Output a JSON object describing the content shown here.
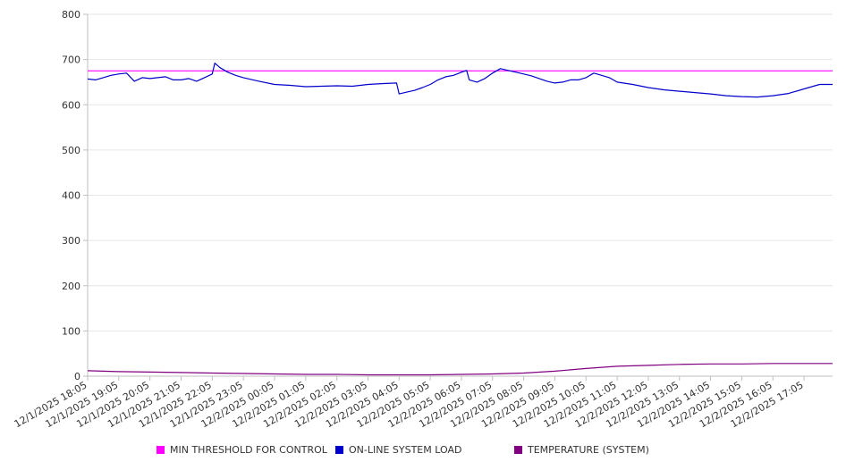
{
  "chart_data": {
    "type": "line",
    "title": "",
    "xlabel": "",
    "ylabel": "",
    "ylim": [
      0,
      800
    ],
    "yticks": [
      0,
      100,
      200,
      300,
      400,
      500,
      600,
      700,
      800
    ],
    "grid": true,
    "legend_position": "bottom",
    "x_tick_labels": [
      "12/1/2025 18:05",
      "12/1/2025 19:05",
      "12/1/2025 20:05",
      "12/1/2025 21:05",
      "12/1/2025 22:05",
      "12/1/2025 23:05",
      "12/2/2025 00:05",
      "12/2/2025 01:05",
      "12/2/2025 02:05",
      "12/2/2025 03:05",
      "12/2/2025 04:05",
      "12/2/2025 05:05",
      "12/2/2025 06:05",
      "12/2/2025 07:05",
      "12/2/2025 08:05",
      "12/2/2025 09:05",
      "12/2/2025 10:05",
      "12/2/2025 11:05",
      "12/2/2025 12:05",
      "12/2/2025 13:05",
      "12/2/2025 14:05",
      "12/2/2025 15:05",
      "12/2/2025 16:05",
      "12/2/2025 17:05"
    ],
    "x_end": "12/2/2025 18:00",
    "series": [
      {
        "name": "MIN THRESHOLD FOR CONTROL",
        "color": "#ff00ff",
        "x": [
          "12/1/2025 18:05",
          "12/2/2025 18:00"
        ],
        "y": [
          675,
          675
        ]
      },
      {
        "name": "ON-LINE SYSTEM LOAD",
        "color": "#0000cc",
        "x": [
          "12/1/2025 18:05",
          "12/1/2025 18:20",
          "12/1/2025 18:35",
          "12/1/2025 18:50",
          "12/1/2025 19:05",
          "12/1/2025 19:20",
          "12/1/2025 19:35",
          "12/1/2025 19:50",
          "12/1/2025 20:05",
          "12/1/2025 20:20",
          "12/1/2025 20:35",
          "12/1/2025 20:50",
          "12/1/2025 21:05",
          "12/1/2025 21:20",
          "12/1/2025 21:35",
          "12/1/2025 21:50",
          "12/1/2025 22:05",
          "12/1/2025 22:10",
          "12/1/2025 22:20",
          "12/1/2025 22:35",
          "12/1/2025 22:50",
          "12/1/2025 23:05",
          "12/1/2025 23:35",
          "12/2/2025 00:05",
          "12/2/2025 00:35",
          "12/2/2025 01:05",
          "12/2/2025 01:35",
          "12/2/2025 02:05",
          "12/2/2025 02:35",
          "12/2/2025 03:05",
          "12/2/2025 03:35",
          "12/2/2025 04:00",
          "12/2/2025 04:05",
          "12/2/2025 04:20",
          "12/2/2025 04:35",
          "12/2/2025 04:50",
          "12/2/2025 05:05",
          "12/2/2025 05:20",
          "12/2/2025 05:35",
          "12/2/2025 05:50",
          "12/2/2025 06:05",
          "12/2/2025 06:15",
          "12/2/2025 06:20",
          "12/2/2025 06:35",
          "12/2/2025 06:50",
          "12/2/2025 07:05",
          "12/2/2025 07:20",
          "12/2/2025 07:35",
          "12/2/2025 07:50",
          "12/2/2025 08:05",
          "12/2/2025 08:20",
          "12/2/2025 08:35",
          "12/2/2025 08:50",
          "12/2/2025 09:05",
          "12/2/2025 09:20",
          "12/2/2025 09:35",
          "12/2/2025 09:50",
          "12/2/2025 10:05",
          "12/2/2025 10:20",
          "12/2/2025 10:35",
          "12/2/2025 10:50",
          "12/2/2025 11:05",
          "12/2/2025 11:35",
          "12/2/2025 12:05",
          "12/2/2025 12:35",
          "12/2/2025 13:05",
          "12/2/2025 13:35",
          "12/2/2025 14:05",
          "12/2/2025 14:35",
          "12/2/2025 15:05",
          "12/2/2025 15:35",
          "12/2/2025 16:05",
          "12/2/2025 16:35",
          "12/2/2025 17:05",
          "12/2/2025 17:35",
          "12/2/2025 18:00"
        ],
        "y": [
          657,
          655,
          660,
          665,
          668,
          670,
          652,
          660,
          658,
          660,
          662,
          655,
          655,
          658,
          652,
          660,
          668,
          692,
          682,
          672,
          665,
          660,
          652,
          645,
          643,
          640,
          641,
          642,
          641,
          645,
          647,
          648,
          624,
          628,
          632,
          638,
          645,
          655,
          662,
          665,
          672,
          676,
          655,
          650,
          658,
          670,
          680,
          676,
          672,
          668,
          664,
          658,
          652,
          648,
          650,
          655,
          655,
          660,
          670,
          665,
          660,
          650,
          645,
          638,
          633,
          630,
          627,
          624,
          620,
          618,
          617,
          620,
          625,
          635,
          645,
          645
        ]
      },
      {
        "name": "TEMPERATURE (SYSTEM)",
        "color": "#800080",
        "x": [
          "12/1/2025 18:05",
          "12/1/2025 19:05",
          "12/1/2025 20:05",
          "12/1/2025 21:05",
          "12/1/2025 22:05",
          "12/1/2025 23:05",
          "12/2/2025 00:05",
          "12/2/2025 01:05",
          "12/2/2025 02:05",
          "12/2/2025 03:05",
          "12/2/2025 04:05",
          "12/2/2025 05:05",
          "12/2/2025 06:05",
          "12/2/2025 07:05",
          "12/2/2025 08:05",
          "12/2/2025 09:05",
          "12/2/2025 10:05",
          "12/2/2025 11:05",
          "12/2/2025 12:05",
          "12/2/2025 13:05",
          "12/2/2025 14:05",
          "12/2/2025 15:05",
          "12/2/2025 16:05",
          "12/2/2025 17:05",
          "12/2/2025 18:00"
        ],
        "y": [
          12,
          10,
          9,
          8,
          7,
          6,
          5,
          4,
          4,
          3,
          3,
          3,
          4,
          5,
          7,
          11,
          17,
          22,
          24,
          26,
          27,
          27,
          28,
          28,
          28
        ]
      }
    ]
  }
}
